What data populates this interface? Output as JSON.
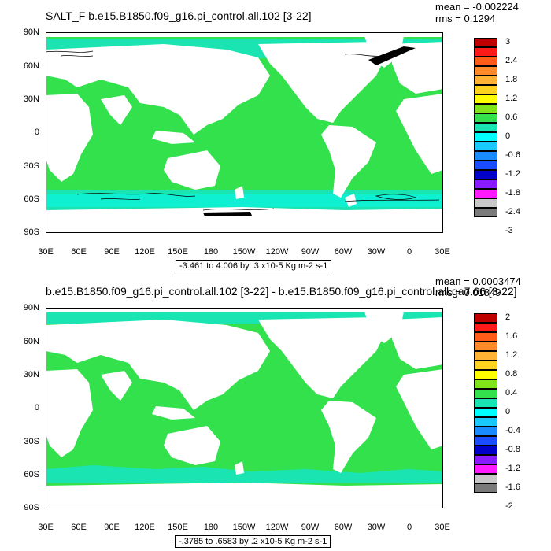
{
  "panels": [
    {
      "title": "SALT_F b.e15.B1850.f09_g16.pi_control.all.102 [3-22]",
      "mean": "mean = -0.002224",
      "rms": "rms = 0.1294",
      "range_note": "-3.461 to 4.006 by .3 x10-5 Kg m-2 s-1",
      "colorbar_labels": [
        "3",
        "2.4",
        "1.8",
        "1.2",
        "0.6",
        "0",
        "-0.6",
        "-1.2",
        "-1.8",
        "-2.4",
        "-3"
      ]
    },
    {
      "title": "b.e15.B1850.f09_g16.pi_control.all.102 [3-22] - b.e15.B1850.f09_g16.pi_control.all.ga7.66 [3-22]",
      "mean": "mean = 0.0003474",
      "rms": "rms = 0.01849",
      "range_note": "-.3785 to .6583 by .2 x10-5 Kg m-2 s-1",
      "colorbar_labels": [
        "2",
        "1.6",
        "1.2",
        "0.8",
        "0.4",
        "0",
        "-0.4",
        "-0.8",
        "-1.2",
        "-1.6",
        "-2"
      ]
    }
  ],
  "axes": {
    "lat_labels": [
      "90N",
      "60N",
      "30N",
      "0",
      "30S",
      "60S",
      "90S"
    ],
    "lon_labels": [
      "30E",
      "60E",
      "90E",
      "120E",
      "150E",
      "180",
      "150W",
      "120W",
      "90W",
      "60W",
      "30W",
      "0",
      "30E"
    ]
  },
  "colorbar_colors": [
    "#bf0000",
    "#ff1a1a",
    "#ff5c1a",
    "#ff8a2a",
    "#ffb233",
    "#ffd21f",
    "#ffff00",
    "#7fe51a",
    "#33e14d",
    "#1ae5b2",
    "#00ffff",
    "#1ac9ff",
    "#1a8aff",
    "#1a4dff",
    "#0000c9",
    "#8a1aff",
    "#ff1aff",
    "#c8c8c8",
    "#7a7a7a"
  ],
  "map_colors": {
    "ocean": "#33e14d",
    "land": "#ffffff",
    "band": "#1ae5b2",
    "band_light": "#00ffff"
  }
}
